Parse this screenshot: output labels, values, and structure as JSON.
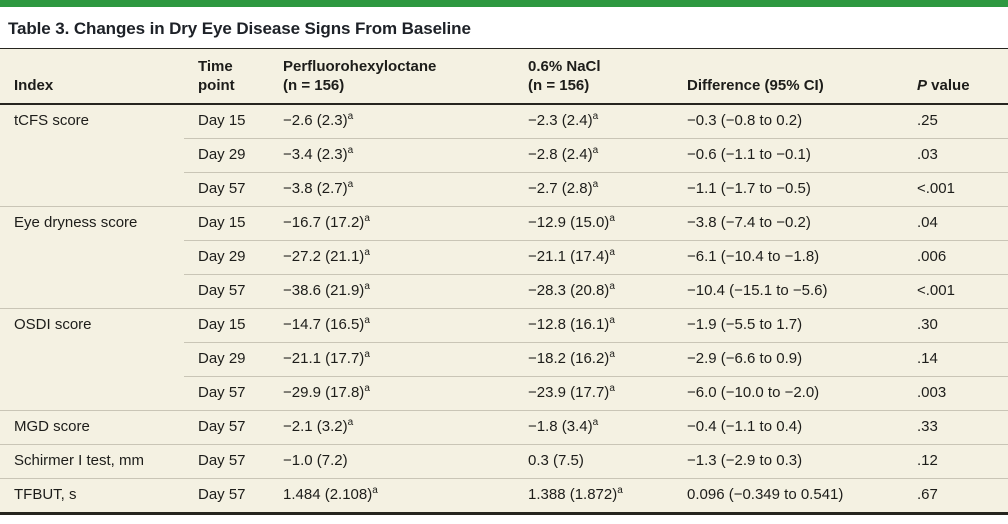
{
  "colors": {
    "accent_green": "#2d9840",
    "table_background": "#f4f1e2",
    "rule_dark": "#26251f",
    "rule_light": "#c9c5b6"
  },
  "title": "Table 3. Changes in Dry Eye Disease Signs From Baseline",
  "headers": {
    "index": "Index",
    "time_line1": "Time",
    "time_line2": "point",
    "drug_line1": "Perfluorohexyloctane",
    "drug_line2": "(n = 156)",
    "control_line1": "0.6% NaCl",
    "control_line2": "(n = 156)",
    "difference": "Difference (95% CI)",
    "p_italic": "P",
    "p_rest": " value"
  },
  "rows": [
    {
      "index": "tCFS score",
      "time": "Day 15",
      "drug": "−2.6 (2.3)",
      "drug_sup": "a",
      "control": "−2.3 (2.4)",
      "control_sup": "a",
      "diff": "−0.3 (−0.8 to 0.2)",
      "p": ".25"
    },
    {
      "index": "",
      "time": "Day 29",
      "drug": "−3.4 (2.3)",
      "drug_sup": "a",
      "control": "−2.8 (2.4)",
      "control_sup": "a",
      "diff": "−0.6 (−1.1 to −0.1)",
      "p": ".03"
    },
    {
      "index": "",
      "time": "Day 57",
      "drug": "−3.8 (2.7)",
      "drug_sup": "a",
      "control": "−2.7 (2.8)",
      "control_sup": "a",
      "diff": "−1.1 (−1.7 to −0.5)",
      "p": "<.001"
    },
    {
      "index": "Eye dryness score",
      "time": "Day 15",
      "drug": "−16.7 (17.2)",
      "drug_sup": "a",
      "control": "−12.9 (15.0)",
      "control_sup": "a",
      "diff": "−3.8 (−7.4 to −0.2)",
      "p": ".04"
    },
    {
      "index": "",
      "time": "Day 29",
      "drug": "−27.2 (21.1)",
      "drug_sup": "a",
      "control": "−21.1 (17.4)",
      "control_sup": "a",
      "diff": "−6.1 (−10.4 to −1.8)",
      "p": ".006"
    },
    {
      "index": "",
      "time": "Day 57",
      "drug": "−38.6 (21.9)",
      "drug_sup": "a",
      "control": "−28.3 (20.8)",
      "control_sup": "a",
      "diff": "−10.4 (−15.1 to −5.6)",
      "p": "<.001"
    },
    {
      "index": "OSDI score",
      "time": "Day 15",
      "drug": "−14.7 (16.5)",
      "drug_sup": "a",
      "control": "−12.8 (16.1)",
      "control_sup": "a",
      "diff": "−1.9 (−5.5 to 1.7)",
      "p": ".30"
    },
    {
      "index": "",
      "time": "Day 29",
      "drug": "−21.1 (17.7)",
      "drug_sup": "a",
      "control": "−18.2 (16.2)",
      "control_sup": "a",
      "diff": "−2.9 (−6.6 to 0.9)",
      "p": ".14"
    },
    {
      "index": "",
      "time": "Day 57",
      "drug": "−29.9 (17.8)",
      "drug_sup": "a",
      "control": "−23.9 (17.7)",
      "control_sup": "a",
      "diff": "−6.0 (−10.0 to −2.0)",
      "p": ".003"
    },
    {
      "index": "MGD score",
      "time": "Day 57",
      "drug": "−2.1 (3.2)",
      "drug_sup": "a",
      "control": "−1.8 (3.4)",
      "control_sup": "a",
      "diff": "−0.4 (−1.1 to 0.4)",
      "p": ".33"
    },
    {
      "index": "Schirmer I test, mm",
      "time": "Day 57",
      "drug": "−1.0 (7.2)",
      "drug_sup": "",
      "control": "0.3 (7.5)",
      "control_sup": "",
      "diff": "−1.3 (−2.9 to 0.3)",
      "p": ".12"
    },
    {
      "index": "TFBUT, s",
      "time": "Day 57",
      "drug": "1.484 (2.108)",
      "drug_sup": "a",
      "control": "1.388 (1.872)",
      "control_sup": "a",
      "diff": "0.096 (−0.349 to 0.541)",
      "p": ".67"
    }
  ]
}
